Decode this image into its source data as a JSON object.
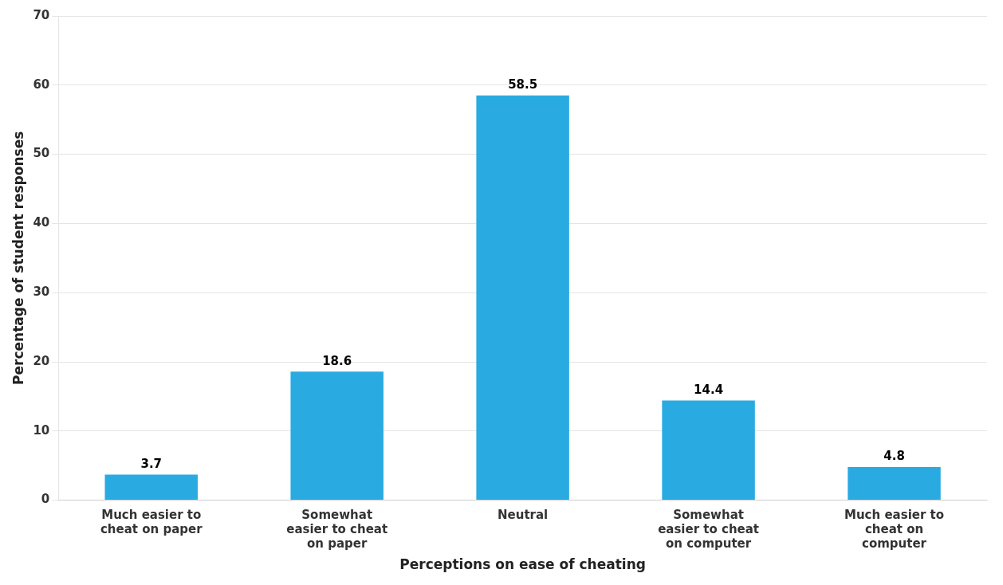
{
  "chart_data": {
    "type": "bar",
    "categories": [
      "Much easier to\ncheat on paper",
      "Somewhat\neasier to cheat\non paper",
      "Neutral",
      "Somewhat\neasier to cheat\non computer",
      "Much easier to\ncheat on\ncomputer"
    ],
    "values": [
      3.7,
      18.6,
      58.5,
      14.4,
      4.8
    ],
    "color": "#29ABE2",
    "xlabel": "Perceptions on ease of cheating",
    "ylabel": "Percentage of student responses",
    "ylim": [
      0,
      70
    ],
    "yticks": [
      0,
      10,
      20,
      30,
      40,
      50,
      60,
      70
    ],
    "grid": true,
    "data_labels": true
  }
}
